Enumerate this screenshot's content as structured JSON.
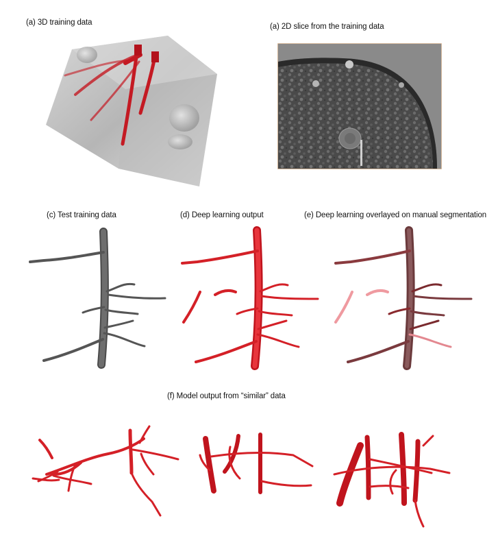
{
  "figure": {
    "panels": [
      {
        "id": "a1",
        "caption": "(a) 3D training data"
      },
      {
        "id": "a2",
        "caption": "(a) 2D slice from the training data"
      },
      {
        "id": "c",
        "caption": "(c) Test training data"
      },
      {
        "id": "d",
        "caption": "(d) Deep learning output"
      },
      {
        "id": "e",
        "caption": "(e) Deep learning overlayed on manual segmentation"
      },
      {
        "id": "f",
        "caption": "(f) Model output from “similar” data"
      }
    ]
  },
  "colors": {
    "root_red": "#d42027",
    "root_gray": "#555555",
    "slice_border": "#c9a27a",
    "volume_gray": "#b8b8b8"
  }
}
